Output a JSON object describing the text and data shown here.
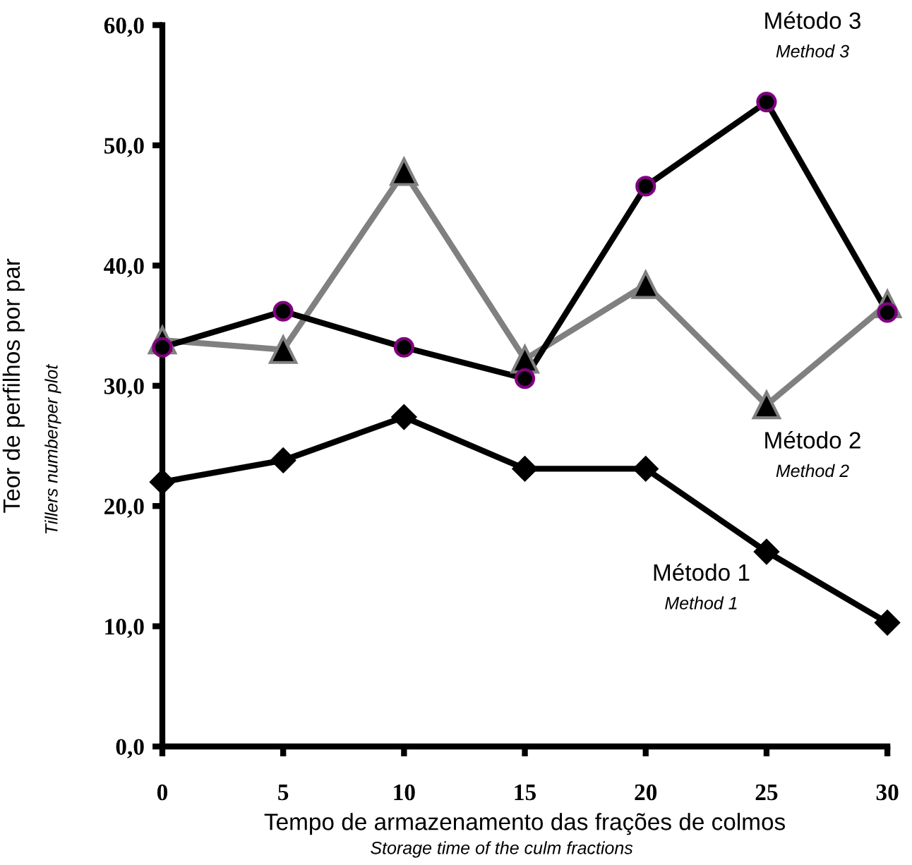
{
  "chart_data": {
    "type": "line",
    "xlabel": "Tempo de armazenamento das frações de colmos",
    "ylabel": "Teor de perfilhos por par",
    "x": [
      0,
      5,
      10,
      15,
      20,
      25,
      30
    ],
    "series": [
      {
        "name": "Método 1",
        "color": "#000000",
        "marker": "diamond",
        "values": [
          22.0,
          23.8,
          27.4,
          23.1,
          23.1,
          16.2,
          10.3
        ]
      },
      {
        "name": "Método 2",
        "color": "#808080",
        "marker": "triangle",
        "values": [
          33.8,
          33.0,
          47.8,
          32.2,
          38.4,
          28.4,
          36.8
        ]
      },
      {
        "name": "Método 3",
        "color": "#000000",
        "marker": "circle",
        "values": [
          33.2,
          36.2,
          33.2,
          30.6,
          46.6,
          53.6,
          36.1
        ]
      }
    ],
    "annotations": [
      "Method 1",
      "Method 2",
      "Method 3",
      "Tillers numberper plot",
      "Storage time of the culm fractions"
    ],
    "xlim": [
      0,
      30
    ],
    "xticks": [
      0,
      5,
      10,
      15,
      20,
      25,
      30
    ],
    "ylim": [
      0,
      60
    ],
    "yticks": [
      {
        "value": 0,
        "label": "0,0"
      },
      {
        "value": 10,
        "label": "10,0"
      },
      {
        "value": 20,
        "label": "20,0"
      },
      {
        "value": 30,
        "label": "30,0"
      },
      {
        "value": 40,
        "label": "40,0"
      },
      {
        "value": 50,
        "label": "50,0"
      },
      {
        "value": 60,
        "label": "60,0"
      }
    ],
    "grid": false,
    "legend": false
  }
}
